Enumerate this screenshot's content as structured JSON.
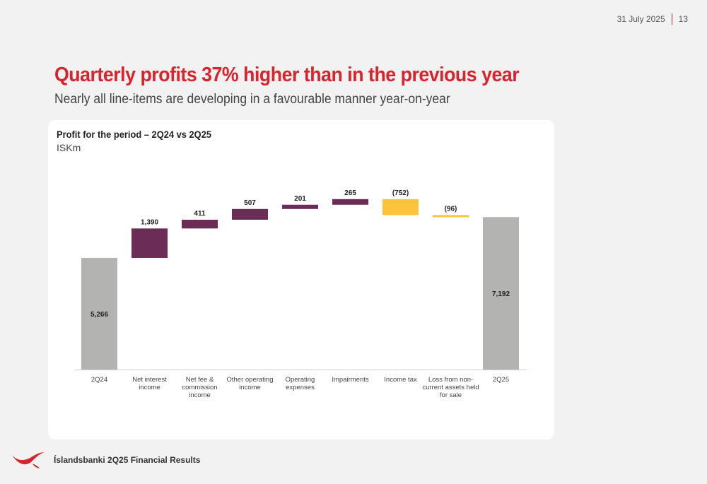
{
  "header": {
    "date": "31 July 2025",
    "page_number": "13"
  },
  "title": "Quarterly profits 37% higher than in the previous year",
  "subtitle": "Nearly all line-items are developing in a favourable manner year-on-year",
  "card": {
    "title": "Profit for the period – 2Q24 vs 2Q25",
    "unit": "ISKm"
  },
  "footer": {
    "text": "Íslandsbanki 2Q25 Financial Results",
    "logo_icon": "islandsbanki-logo-icon"
  },
  "colors": {
    "accent": "#d9232d",
    "total": "#b3b3b1",
    "positive": "#6b2d55",
    "negative": "#fec33c"
  },
  "chart_data": {
    "type": "waterfall",
    "title": "Profit for the period – 2Q24 vs 2Q25",
    "ylabel": "ISKm",
    "ylim": [
      0,
      9000
    ],
    "categories": [
      [
        "2Q24"
      ],
      [
        "Net interest",
        "income"
      ],
      [
        "Net fee &",
        "commission",
        "income"
      ],
      [
        "Other operating",
        "income"
      ],
      [
        "Operating",
        "expenses"
      ],
      [
        "Impairments"
      ],
      [
        "Income tax"
      ],
      [
        "Loss from non-",
        "current assets held",
        "for sale"
      ],
      [
        "2Q25"
      ]
    ],
    "values": [
      5266,
      1390,
      411,
      507,
      201,
      265,
      -752,
      -96,
      7192
    ],
    "labels": [
      "5,266",
      "1,390",
      "411",
      "507",
      "201",
      "265",
      "(752)",
      "(96)",
      "7,192"
    ],
    "kinds": [
      "total",
      "delta",
      "delta",
      "delta",
      "delta",
      "delta",
      "delta",
      "delta",
      "total"
    ]
  }
}
